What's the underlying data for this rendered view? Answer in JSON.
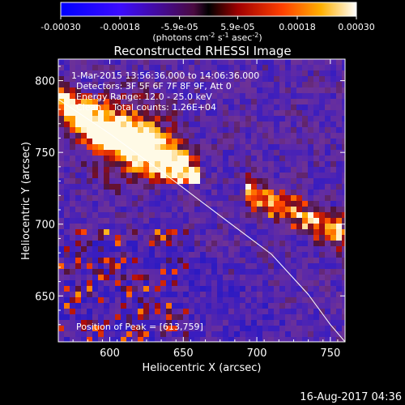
{
  "colorbar": {
    "tick_labels": [
      "-0.00030",
      "-0.00018",
      "-5.9e-05",
      "5.9e-05",
      "0.00018",
      "0.00030"
    ],
    "tick_values": [
      -0.0003,
      -0.00018,
      -5.9e-05,
      5.9e-05,
      0.00018,
      0.0003
    ],
    "range": [
      -0.0003,
      0.0003
    ],
    "units_base": "(photons cm",
    "units_exp1": "-2",
    "units_mid": " s",
    "units_exp2": "-1",
    "units_mid2": " asec",
    "units_exp3": "-2",
    "units_end": ")"
  },
  "chart_data": {
    "type": "heatmap",
    "title": "Reconstructed RHESSI Image",
    "xlabel": "Heliocentric X (arcsec)",
    "ylabel": "Heliocentric Y (arcsec)",
    "xlim": [
      565,
      760
    ],
    "ylim": [
      618,
      815
    ],
    "xticks": [
      600,
      650,
      700,
      750
    ],
    "yticks": [
      650,
      700,
      750,
      800
    ],
    "colormap": "blue-purple-red-yellow-white",
    "peak": [
      613,
      759
    ],
    "annotations": {
      "time_range": "1-Mar-2015 13:56:36.000 to 14:06:36.000",
      "detectors": "Detectors: 3F 5F 6F 7F 8F 9F, Att 0",
      "energy": "Energy Range: 12.0 - 25.0 keV",
      "clean": "Clean    Total counts: 1.26E+04",
      "peak_text": "Position of Peak = [613,759]"
    },
    "limb_curve": [
      [
        565,
        787
      ],
      [
        600,
        763
      ],
      [
        640,
        733
      ],
      [
        680,
        702
      ],
      [
        710,
        679
      ],
      [
        735,
        651
      ],
      [
        750,
        630
      ],
      [
        760,
        618
      ]
    ]
  },
  "footer": {
    "date": "16-Aug-2017 04:36"
  }
}
